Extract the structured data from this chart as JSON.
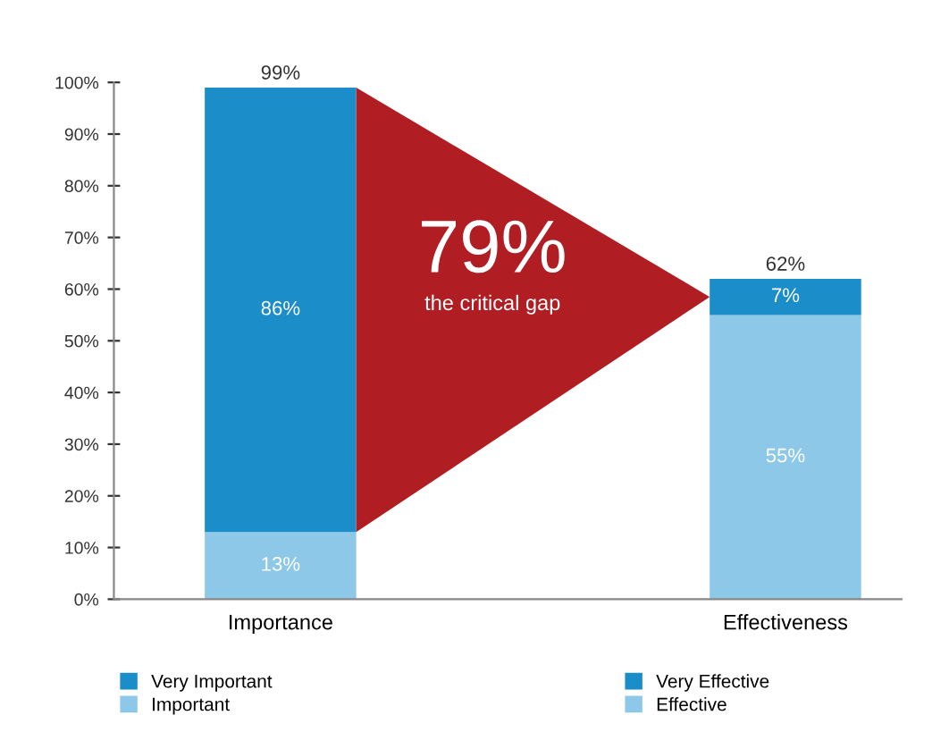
{
  "chart_data": {
    "type": "bar",
    "stacked": true,
    "categories": [
      "Importance",
      "Effectiveness"
    ],
    "series": [
      {
        "name": "Important",
        "color": "#8ec8e8",
        "values": [
          13,
          null
        ],
        "value_labels": [
          "13%",
          null
        ]
      },
      {
        "name": "Very Important",
        "color": "#1b8dc9",
        "values": [
          86,
          null
        ],
        "value_labels": [
          "86%",
          null
        ]
      },
      {
        "name": "Effective",
        "color": "#8ec8e8",
        "values": [
          null,
          55
        ],
        "value_labels": [
          null,
          "55%"
        ]
      },
      {
        "name": "Very Effective",
        "color": "#1b8dc9",
        "values": [
          null,
          7
        ],
        "value_labels": [
          null,
          "7%"
        ]
      }
    ],
    "totals": [
      "99%",
      "62%"
    ],
    "ylim": [
      0,
      100
    ],
    "yticks": [
      {
        "value": 0,
        "label": "0%"
      },
      {
        "value": 10,
        "label": "10%"
      },
      {
        "value": 20,
        "label": "20%"
      },
      {
        "value": 30,
        "label": "30%"
      },
      {
        "value": 40,
        "label": "40%"
      },
      {
        "value": 50,
        "label": "50%"
      },
      {
        "value": 60,
        "label": "60%"
      },
      {
        "value": 70,
        "label": "70%"
      },
      {
        "value": 80,
        "label": "80%"
      },
      {
        "value": 90,
        "label": "90%"
      },
      {
        "value": 100,
        "label": "100%"
      }
    ],
    "annotations": [
      "79%",
      "the critical gap"
    ],
    "grid": false,
    "legend": "bottom"
  }
}
